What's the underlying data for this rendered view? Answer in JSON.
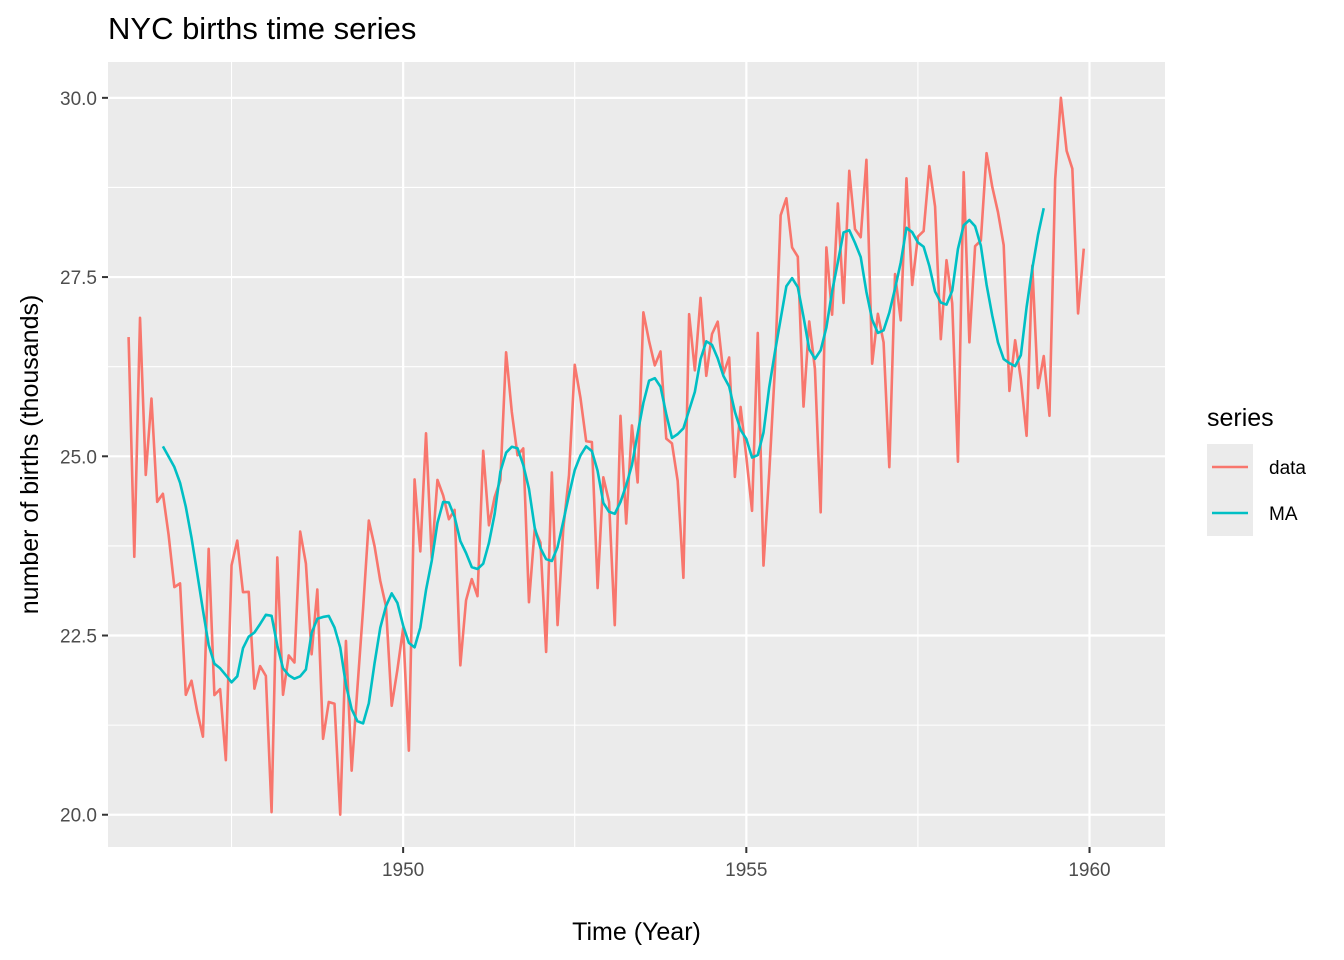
{
  "chart_data": {
    "type": "line",
    "title": "NYC births time series",
    "xlabel": "Time (Year)",
    "ylabel": "number of births (thousands)",
    "xlim": [
      1945.7,
      1961.1
    ],
    "ylim": [
      19.55,
      30.5
    ],
    "x_ticks": [
      1950,
      1955,
      1960
    ],
    "x_tick_labels": [
      "1950",
      "1955",
      "1960"
    ],
    "y_ticks": [
      20.0,
      22.5,
      25.0,
      27.5,
      30.0
    ],
    "y_tick_labels": [
      "20.0",
      "22.5",
      "25.0",
      "27.5",
      "30.0"
    ],
    "grid": true,
    "legend": {
      "title": "series",
      "position": "right",
      "entries": [
        {
          "label": "data",
          "color": "#F8766D"
        },
        {
          "label": "MA",
          "color": "#00BFC4"
        }
      ]
    },
    "series": [
      {
        "name": "data",
        "color": "#F8766D",
        "start": 1946.0,
        "step": 0.0833333,
        "values": [
          26.663,
          23.598,
          26.931,
          24.74,
          25.806,
          24.364,
          24.477,
          23.901,
          23.175,
          23.227,
          21.672,
          21.87,
          21.439,
          21.089,
          23.709,
          21.669,
          21.752,
          20.761,
          23.479,
          23.824,
          23.105,
          23.11,
          21.759,
          22.073,
          21.937,
          20.035,
          23.59,
          21.672,
          22.222,
          22.123,
          23.95,
          23.504,
          22.238,
          23.142,
          21.059,
          21.573,
          21.548,
          20.0,
          22.424,
          20.615,
          21.761,
          22.874,
          24.104,
          23.748,
          23.262,
          22.907,
          21.519,
          22.025,
          22.604,
          20.894,
          24.677,
          23.673,
          25.32,
          23.583,
          24.671,
          24.454,
          24.122,
          24.252,
          22.084,
          22.991,
          23.287,
          23.049,
          25.076,
          24.037,
          24.43,
          24.667,
          26.451,
          25.618,
          25.014,
          25.11,
          22.964,
          23.981,
          23.798,
          22.27,
          24.775,
          22.646,
          23.988,
          24.737,
          26.276,
          25.816,
          25.21,
          25.199,
          23.162,
          24.707,
          24.364,
          22.644,
          25.565,
          24.062,
          25.431,
          24.635,
          27.009,
          26.606,
          26.268,
          26.462,
          25.246,
          25.18,
          24.657,
          23.304,
          26.982,
          26.199,
          27.21,
          26.122,
          26.706,
          26.878,
          26.152,
          26.379,
          24.712,
          25.688,
          24.99,
          24.239,
          26.721,
          23.475,
          24.767,
          26.219,
          28.361,
          28.599,
          27.914,
          27.784,
          25.693,
          26.881,
          26.217,
          24.218,
          27.914,
          26.975,
          28.527,
          27.139,
          28.982,
          28.169,
          28.056,
          29.136,
          26.291,
          26.987,
          26.589,
          24.848,
          27.543,
          26.896,
          28.878,
          27.39,
          28.065,
          28.141,
          29.048,
          28.484,
          26.634,
          27.735,
          27.132,
          24.924,
          28.963,
          26.589,
          27.931,
          28.009,
          29.229,
          28.759,
          28.405,
          27.945,
          25.912,
          26.619,
          26.076,
          25.286,
          27.66,
          25.951,
          26.398,
          25.565,
          28.865,
          30.0,
          29.261,
          29.012,
          26.992,
          27.897
        ]
      },
      {
        "name": "MA",
        "color": "#00BFC4",
        "start": 1946.5,
        "step": 0.0833333,
        "values": [
          25.138,
          24.995,
          24.85,
          24.63,
          24.296,
          23.864,
          23.365,
          22.854,
          22.368,
          22.107,
          22.043,
          21.946,
          21.847,
          21.931,
          22.323,
          22.484,
          22.542,
          22.661,
          22.789,
          22.775,
          22.36,
          22.042,
          21.946,
          21.897,
          21.931,
          22.026,
          22.536,
          22.734,
          22.759,
          22.773,
          22.612,
          22.333,
          21.813,
          21.473,
          21.306,
          21.274,
          21.556,
          22.113,
          22.607,
          22.909,
          23.088,
          22.955,
          22.638,
          22.397,
          22.335,
          22.611,
          23.134,
          23.541,
          24.071,
          24.364,
          24.354,
          24.154,
          23.817,
          23.651,
          23.454,
          23.428,
          23.502,
          23.791,
          24.195,
          24.786,
          25.05,
          25.133,
          25.112,
          24.879,
          24.544,
          24.005,
          23.722,
          23.565,
          23.54,
          23.733,
          24.092,
          24.461,
          24.807,
          25.012,
          25.139,
          25.072,
          24.796,
          24.351,
          24.226,
          24.198,
          24.362,
          24.597,
          24.876,
          25.318,
          25.744,
          26.054,
          26.09,
          25.97,
          25.589,
          25.256,
          25.309,
          25.39,
          25.644,
          25.899,
          26.355,
          26.604,
          26.554,
          26.366,
          26.12,
          25.974,
          25.621,
          25.367,
          25.242,
          24.983,
          25.018,
          25.33,
          25.961,
          26.454,
          26.915,
          27.372,
          27.486,
          27.358,
          26.945,
          26.493,
          26.359,
          26.479,
          26.798,
          27.299,
          27.707,
          28.122,
          28.154,
          27.977,
          27.779,
          27.29,
          26.906,
          26.721,
          26.757,
          27.004,
          27.34,
          27.705,
          28.187,
          28.126,
          27.983,
          27.923,
          27.655,
          27.298,
          27.145,
          27.116,
          27.31,
          27.893,
          28.222,
          28.296,
          28.209,
          27.939,
          27.395,
          26.962,
          26.589,
          26.356,
          26.299,
          26.258,
          26.411,
          27.079,
          27.618,
          28.088,
          28.461
        ]
      }
    ]
  }
}
